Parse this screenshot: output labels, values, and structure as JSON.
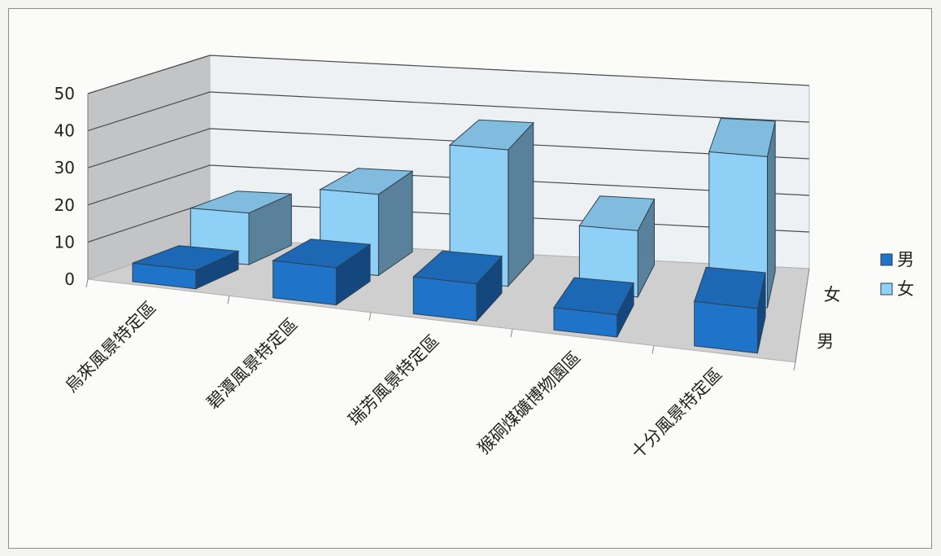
{
  "chart_data": {
    "type": "bar",
    "subtype": "3d-column",
    "categories": [
      "烏來風景特定區",
      "碧潭風景特定區",
      "瑞芳風景特定區",
      "猴硐煤礦博物園區",
      "十分風景特定區"
    ],
    "series": [
      {
        "name": "男",
        "values": [
          5,
          10,
          10,
          6,
          12
        ],
        "color": "#1f73c9"
      },
      {
        "name": "女",
        "values": [
          14,
          22,
          37,
          18,
          41
        ],
        "color": "#8fd0f7"
      }
    ],
    "ylim": [
      0,
      50
    ],
    "yticks": [
      0,
      10,
      20,
      30,
      40,
      50
    ],
    "depth_labels": [
      "女",
      "男"
    ],
    "legend": {
      "placement": "right",
      "entries": [
        "男",
        "女"
      ]
    },
    "grid": true
  }
}
